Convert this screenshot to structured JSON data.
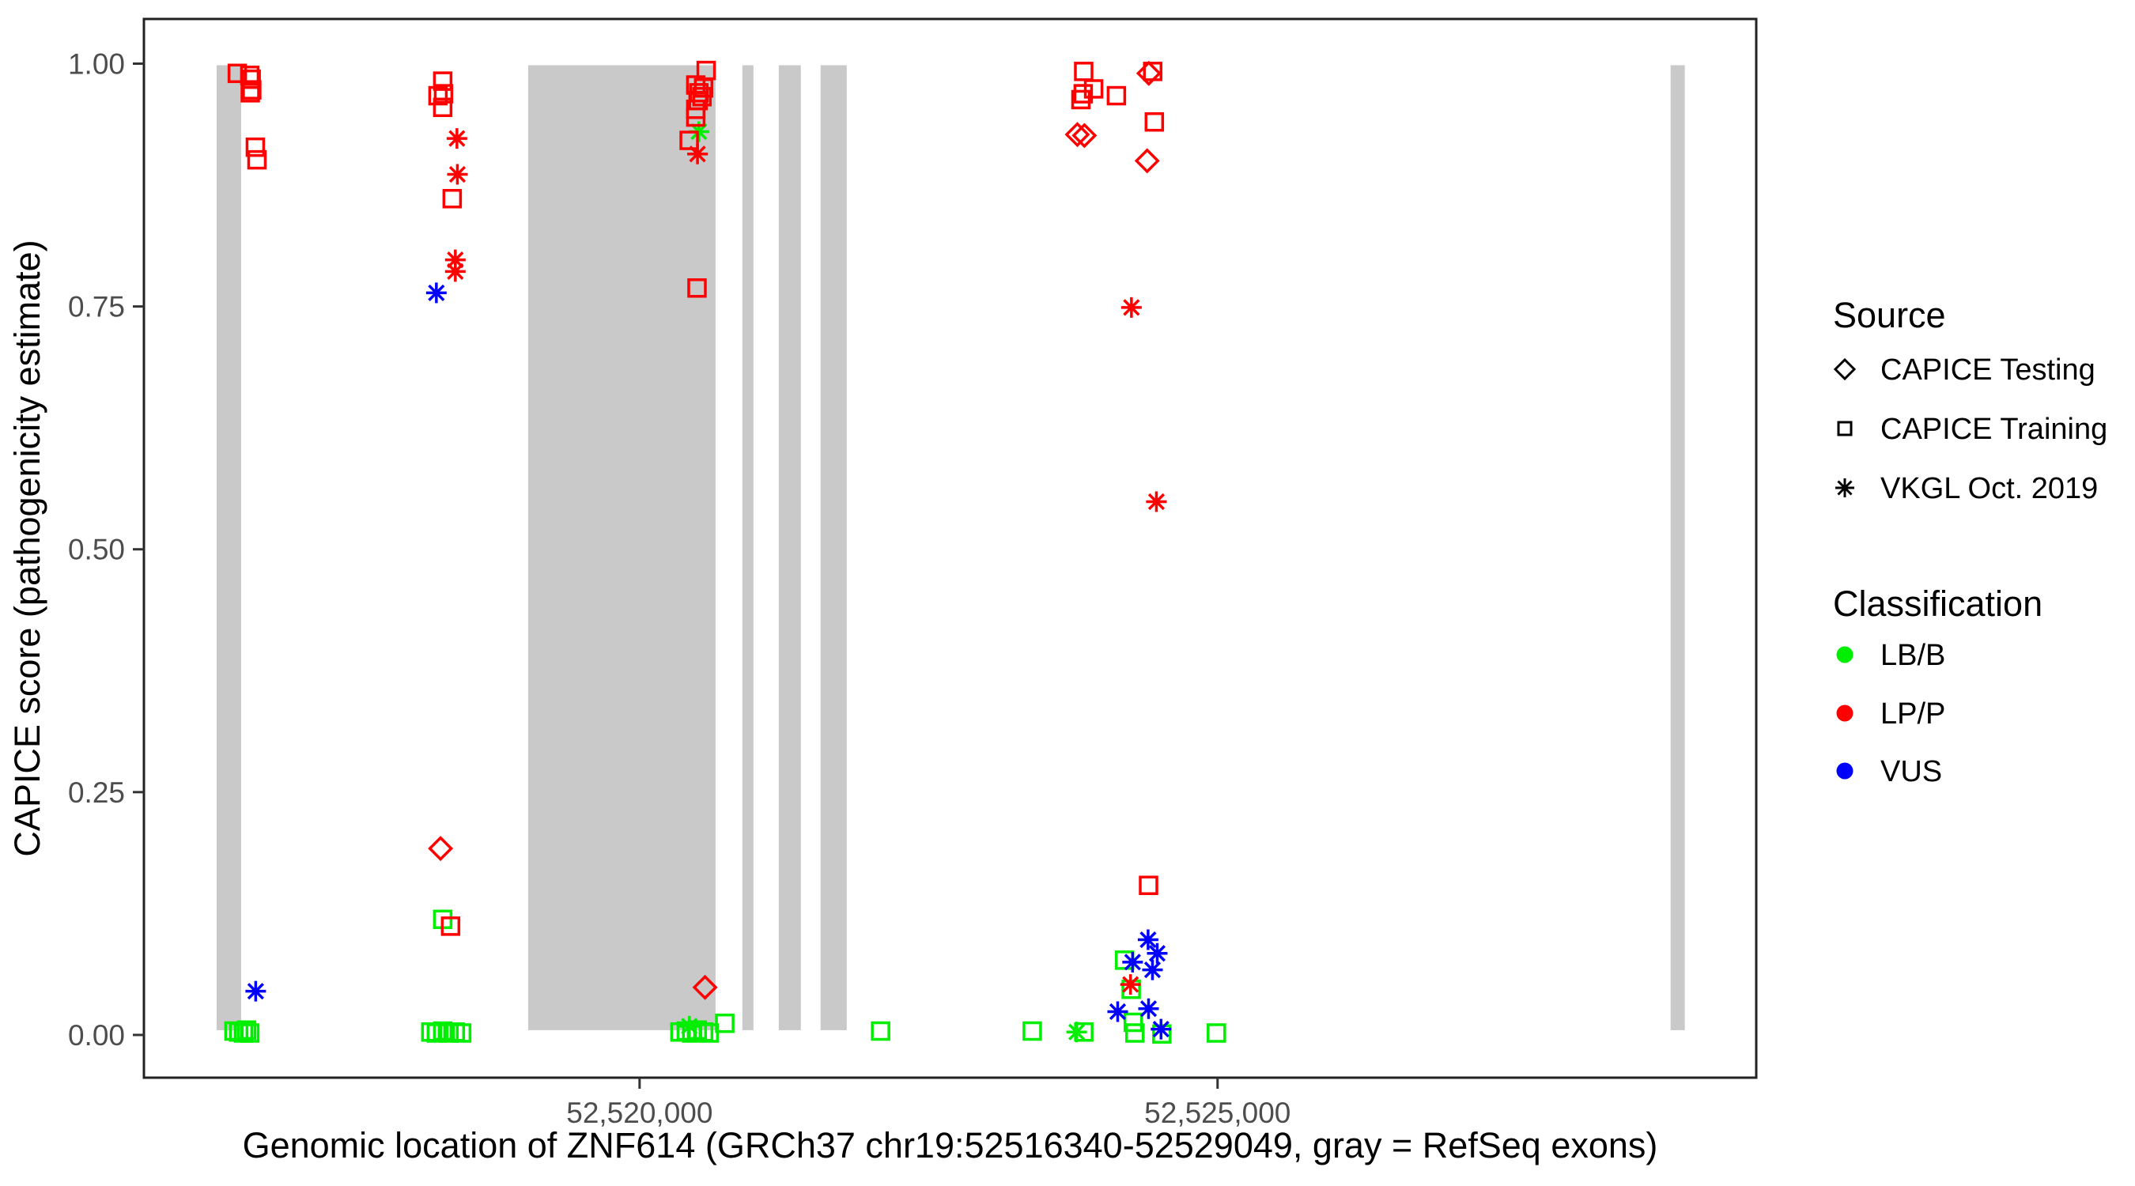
{
  "figure": {
    "background": "#ffffff",
    "panel_border_color": "#222222",
    "exon_color": "#c9c9c9",
    "tick_color": "#333333",
    "tick_text_color": "#4d4d4d"
  },
  "legend": {
    "source": {
      "title": "Source",
      "items": [
        {
          "label": "CAPICE Testing",
          "shape": "diamond"
        },
        {
          "label": "CAPICE Training",
          "shape": "square"
        },
        {
          "label": "VKGL Oct. 2019",
          "shape": "asterisk"
        }
      ]
    },
    "classification": {
      "title": "Classification",
      "items": [
        {
          "label": "LB/B",
          "color": "#00ee00"
        },
        {
          "label": "LP/P",
          "color": "#ff0000"
        },
        {
          "label": "VUS",
          "color": "#0000ff"
        }
      ]
    }
  },
  "chart_data": {
    "type": "scatter",
    "title": "",
    "xlabel": "Genomic location of ZNF614 (GRCh37 chr19:52516340-52529049, gray = RefSeq exons)",
    "ylabel": "CAPICE score (pathogenicity estimate)",
    "grid": false,
    "legend_position": "right",
    "xlim": [
      52515712,
      52529660
    ],
    "ylim": [
      -0.044,
      1.046
    ],
    "x_ticks": [
      {
        "value": 52520000,
        "label": "52,520,000"
      },
      {
        "value": 52525000,
        "label": "52,525,000"
      }
    ],
    "y_ticks": [
      {
        "value": 0.0,
        "label": "0.00"
      },
      {
        "value": 0.25,
        "label": "0.25"
      },
      {
        "value": 0.5,
        "label": "0.50"
      },
      {
        "value": 0.75,
        "label": "0.75"
      },
      {
        "value": 1.0,
        "label": "1.00"
      }
    ],
    "exons": [
      [
        52516341,
        52516553
      ],
      [
        52519036,
        52520657
      ],
      [
        52520889,
        52520985
      ],
      [
        52521204,
        52521395
      ],
      [
        52521566,
        52521792
      ],
      [
        52528919,
        52529042
      ]
    ],
    "shape_by_source": {
      "CAPICE Testing": "diamond",
      "CAPICE Training": "square",
      "VKGL Oct. 2019": "asterisk"
    },
    "color_by_classification": {
      "LB/B": "#00ee00",
      "LP/P": "#ff0000",
      "VUS": "#0000ff"
    },
    "points": [
      {
        "x": 52516491,
        "y": 0.004,
        "src": "CAPICE Training",
        "cls": "LB/B"
      },
      {
        "x": 52516532,
        "y": 0.003,
        "src": "CAPICE Training",
        "cls": "LB/B"
      },
      {
        "x": 52516573,
        "y": 0.002,
        "src": "CAPICE Training",
        "cls": "LB/B"
      },
      {
        "x": 52516600,
        "y": 0.005,
        "src": "CAPICE Training",
        "cls": "LB/B"
      },
      {
        "x": 52516628,
        "y": 0.002,
        "src": "CAPICE Training",
        "cls": "LB/B"
      },
      {
        "x": 52518194,
        "y": 0.003,
        "src": "CAPICE Training",
        "cls": "LB/B"
      },
      {
        "x": 52518242,
        "y": 0.002,
        "src": "CAPICE Training",
        "cls": "LB/B"
      },
      {
        "x": 52518297,
        "y": 0.004,
        "src": "CAPICE Training",
        "cls": "LB/B"
      },
      {
        "x": 52518351,
        "y": 0.002,
        "src": "CAPICE Training",
        "cls": "LB/B"
      },
      {
        "x": 52518406,
        "y": 0.003,
        "src": "CAPICE Training",
        "cls": "LB/B"
      },
      {
        "x": 52518461,
        "y": 0.002,
        "src": "CAPICE Training",
        "cls": "LB/B"
      },
      {
        "x": 52518297,
        "y": 0.119,
        "src": "CAPICE Training",
        "cls": "LB/B"
      },
      {
        "x": 52520349,
        "y": 0.003,
        "src": "CAPICE Training",
        "cls": "LB/B"
      },
      {
        "x": 52520404,
        "y": 0.004,
        "src": "CAPICE Training",
        "cls": "LB/B"
      },
      {
        "x": 52520451,
        "y": 0.002,
        "src": "CAPICE Training",
        "cls": "LB/B"
      },
      {
        "x": 52520499,
        "y": 0.005,
        "src": "CAPICE Training",
        "cls": "LB/B"
      },
      {
        "x": 52520554,
        "y": 0.003,
        "src": "CAPICE Training",
        "cls": "LB/B"
      },
      {
        "x": 52520602,
        "y": 0.002,
        "src": "CAPICE Training",
        "cls": "LB/B"
      },
      {
        "x": 52520431,
        "y": 0.009,
        "src": "VKGL Oct. 2019",
        "cls": "LB/B"
      },
      {
        "x": 52520513,
        "y": 0.93,
        "src": "VKGL Oct. 2019",
        "cls": "LB/B"
      },
      {
        "x": 52520737,
        "y": 0.012,
        "src": "CAPICE Training",
        "cls": "LB/B"
      },
      {
        "x": 52522085,
        "y": 0.004,
        "src": "CAPICE Training",
        "cls": "LB/B"
      },
      {
        "x": 52523397,
        "y": 0.004,
        "src": "CAPICE Training",
        "cls": "LB/B"
      },
      {
        "x": 52523781,
        "y": 0.003,
        "src": "VKGL Oct. 2019",
        "cls": "LB/B"
      },
      {
        "x": 52523843,
        "y": 0.003,
        "src": "CAPICE Training",
        "cls": "LB/B"
      },
      {
        "x": 52524196,
        "y": 0.077,
        "src": "CAPICE Training",
        "cls": "LB/B"
      },
      {
        "x": 52524253,
        "y": 0.047,
        "src": "CAPICE Training",
        "cls": "LB/B"
      },
      {
        "x": 52524271,
        "y": 0.013,
        "src": "CAPICE Training",
        "cls": "LB/B"
      },
      {
        "x": 52524285,
        "y": 0.002,
        "src": "CAPICE Training",
        "cls": "LB/B"
      },
      {
        "x": 52524518,
        "y": 0.001,
        "src": "CAPICE Training",
        "cls": "LB/B"
      },
      {
        "x": 52524990,
        "y": 0.002,
        "src": "CAPICE Training",
        "cls": "LB/B"
      },
      {
        "x": 52516679,
        "y": 0.045,
        "src": "VKGL Oct. 2019",
        "cls": "VUS"
      },
      {
        "x": 52518242,
        "y": 0.764,
        "src": "VKGL Oct. 2019",
        "cls": "VUS"
      },
      {
        "x": 52524399,
        "y": 0.098,
        "src": "VKGL Oct. 2019",
        "cls": "VUS"
      },
      {
        "x": 52524478,
        "y": 0.084,
        "src": "VKGL Oct. 2019",
        "cls": "VUS"
      },
      {
        "x": 52524265,
        "y": 0.075,
        "src": "VKGL Oct. 2019",
        "cls": "VUS"
      },
      {
        "x": 52524437,
        "y": 0.067,
        "src": "VKGL Oct. 2019",
        "cls": "VUS"
      },
      {
        "x": 52524136,
        "y": 0.024,
        "src": "VKGL Oct. 2019",
        "cls": "VUS"
      },
      {
        "x": 52524403,
        "y": 0.027,
        "src": "VKGL Oct. 2019",
        "cls": "VUS"
      },
      {
        "x": 52524511,
        "y": 0.006,
        "src": "VKGL Oct. 2019",
        "cls": "VUS"
      },
      {
        "x": 52516520,
        "y": 0.99,
        "src": "CAPICE Training",
        "cls": "LP/P"
      },
      {
        "x": 52516628,
        "y": 0.988,
        "src": "CAPICE Training",
        "cls": "LP/P"
      },
      {
        "x": 52516640,
        "y": 0.984,
        "src": "CAPICE Training",
        "cls": "LP/P"
      },
      {
        "x": 52516645,
        "y": 0.973,
        "src": "CAPICE Training",
        "cls": "LP/P"
      },
      {
        "x": 52516632,
        "y": 0.97,
        "src": "CAPICE Training",
        "cls": "LP/P"
      },
      {
        "x": 52516676,
        "y": 0.914,
        "src": "CAPICE Training",
        "cls": "LP/P"
      },
      {
        "x": 52516690,
        "y": 0.901,
        "src": "CAPICE Training",
        "cls": "LP/P"
      },
      {
        "x": 52518297,
        "y": 0.982,
        "src": "CAPICE Training",
        "cls": "LP/P"
      },
      {
        "x": 52518256,
        "y": 0.967,
        "src": "CAPICE Training",
        "cls": "LP/P"
      },
      {
        "x": 52518304,
        "y": 0.969,
        "src": "CAPICE Training",
        "cls": "LP/P"
      },
      {
        "x": 52518297,
        "y": 0.955,
        "src": "CAPICE Training",
        "cls": "LP/P"
      },
      {
        "x": 52518420,
        "y": 0.923,
        "src": "VKGL Oct. 2019",
        "cls": "LP/P"
      },
      {
        "x": 52518424,
        "y": 0.886,
        "src": "VKGL Oct. 2019",
        "cls": "LP/P"
      },
      {
        "x": 52518379,
        "y": 0.861,
        "src": "CAPICE Training",
        "cls": "LP/P"
      },
      {
        "x": 52518406,
        "y": 0.798,
        "src": "VKGL Oct. 2019",
        "cls": "LP/P"
      },
      {
        "x": 52518406,
        "y": 0.786,
        "src": "VKGL Oct. 2019",
        "cls": "LP/P"
      },
      {
        "x": 52518278,
        "y": 0.192,
        "src": "CAPICE Testing",
        "cls": "LP/P"
      },
      {
        "x": 52518365,
        "y": 0.112,
        "src": "CAPICE Training",
        "cls": "LP/P"
      },
      {
        "x": 52520576,
        "y": 0.993,
        "src": "CAPICE Training",
        "cls": "LP/P"
      },
      {
        "x": 52520486,
        "y": 0.978,
        "src": "CAPICE Training",
        "cls": "LP/P"
      },
      {
        "x": 52520554,
        "y": 0.975,
        "src": "CAPICE Training",
        "cls": "LP/P"
      },
      {
        "x": 52520513,
        "y": 0.97,
        "src": "CAPICE Training",
        "cls": "LP/P"
      },
      {
        "x": 52520540,
        "y": 0.966,
        "src": "CAPICE Training",
        "cls": "LP/P"
      },
      {
        "x": 52520506,
        "y": 0.962,
        "src": "CAPICE Training",
        "cls": "LP/P"
      },
      {
        "x": 52520486,
        "y": 0.953,
        "src": "CAPICE Training",
        "cls": "LP/P"
      },
      {
        "x": 52520486,
        "y": 0.945,
        "src": "CAPICE Training",
        "cls": "LP/P"
      },
      {
        "x": 52520429,
        "y": 0.921,
        "src": "CAPICE Training",
        "cls": "LP/P"
      },
      {
        "x": 52520501,
        "y": 0.907,
        "src": "VKGL Oct. 2019",
        "cls": "LP/P"
      },
      {
        "x": 52520497,
        "y": 0.769,
        "src": "CAPICE Training",
        "cls": "LP/P"
      },
      {
        "x": 52520566,
        "y": 0.049,
        "src": "CAPICE Testing",
        "cls": "LP/P"
      },
      {
        "x": 52523842,
        "y": 0.992,
        "src": "CAPICE Training",
        "cls": "LP/P"
      },
      {
        "x": 52523928,
        "y": 0.974,
        "src": "CAPICE Training",
        "cls": "LP/P"
      },
      {
        "x": 52523838,
        "y": 0.969,
        "src": "CAPICE Training",
        "cls": "LP/P"
      },
      {
        "x": 52523818,
        "y": 0.963,
        "src": "CAPICE Training",
        "cls": "LP/P"
      },
      {
        "x": 52524125,
        "y": 0.967,
        "src": "CAPICE Training",
        "cls": "LP/P"
      },
      {
        "x": 52524405,
        "y": 0.99,
        "src": "CAPICE Testing",
        "cls": "LP/P"
      },
      {
        "x": 52524439,
        "y": 0.992,
        "src": "CAPICE Training",
        "cls": "LP/P"
      },
      {
        "x": 52524453,
        "y": 0.94,
        "src": "CAPICE Training",
        "cls": "LP/P"
      },
      {
        "x": 52523787,
        "y": 0.927,
        "src": "CAPICE Testing",
        "cls": "LP/P"
      },
      {
        "x": 52523848,
        "y": 0.926,
        "src": "CAPICE Testing",
        "cls": "LP/P"
      },
      {
        "x": 52524391,
        "y": 0.9,
        "src": "CAPICE Testing",
        "cls": "LP/P"
      },
      {
        "x": 52524255,
        "y": 0.749,
        "src": "VKGL Oct. 2019",
        "cls": "LP/P"
      },
      {
        "x": 52524471,
        "y": 0.549,
        "src": "VKGL Oct. 2019",
        "cls": "LP/P"
      },
      {
        "x": 52524403,
        "y": 0.154,
        "src": "CAPICE Training",
        "cls": "LP/P"
      },
      {
        "x": 52524247,
        "y": 0.052,
        "src": "VKGL Oct. 2019",
        "cls": "LP/P"
      }
    ]
  }
}
